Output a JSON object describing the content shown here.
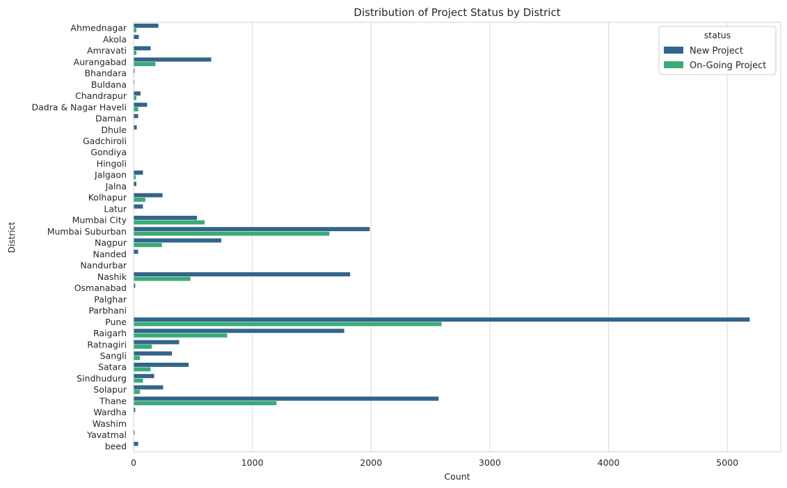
{
  "chart_data": {
    "type": "bar",
    "orientation": "horizontal",
    "title": "Distribution of Project Status by District",
    "xlabel": "Count",
    "ylabel": "District",
    "xlim": [
      0,
      5450
    ],
    "xticks": [
      0,
      1000,
      2000,
      3000,
      4000,
      5000
    ],
    "grid": true,
    "legend_title": "status",
    "legend_position": "top-right",
    "categories": [
      "Ahmednagar",
      "Akola",
      "Amravati",
      "Aurangabad",
      "Bhandara",
      "Buldana",
      "Chandrapur",
      "Dadra & Nagar Haveli",
      "Daman",
      "Dhule",
      "Gadchiroli",
      "Gondiya",
      "Hingoli",
      "Jalgaon",
      "Jalna",
      "Kolhapur",
      "Latur",
      "Mumbai City",
      "Mumbai Suburban",
      "Nagpur",
      "Nanded",
      "Nandurbar",
      "Nashik",
      "Osmanabad",
      "Palghar",
      "Parbhani",
      "Pune",
      "Raigarh",
      "Ratnagiri",
      "Sangli",
      "Satara",
      "Sindhudurg",
      "Solapur",
      "Thane",
      "Wardha",
      "Washim",
      "Yavatmal",
      "beed"
    ],
    "series": [
      {
        "name": "New Project",
        "color": "#33658a",
        "values": [
          210,
          45,
          145,
          655,
          10,
          8,
          60,
          115,
          40,
          28,
          0,
          0,
          0,
          80,
          25,
          245,
          80,
          535,
          1990,
          740,
          40,
          0,
          1825,
          15,
          0,
          0,
          5190,
          1775,
          385,
          325,
          465,
          175,
          250,
          2570,
          15,
          0,
          10,
          40
        ]
      },
      {
        "name": "On-Going Project",
        "color": "#3aab77",
        "values": [
          25,
          0,
          25,
          185,
          0,
          0,
          25,
          40,
          0,
          0,
          0,
          0,
          0,
          20,
          0,
          100,
          0,
          600,
          1650,
          240,
          0,
          0,
          480,
          0,
          0,
          0,
          2595,
          790,
          155,
          55,
          145,
          80,
          55,
          1205,
          0,
          0,
          0,
          0
        ]
      }
    ]
  }
}
